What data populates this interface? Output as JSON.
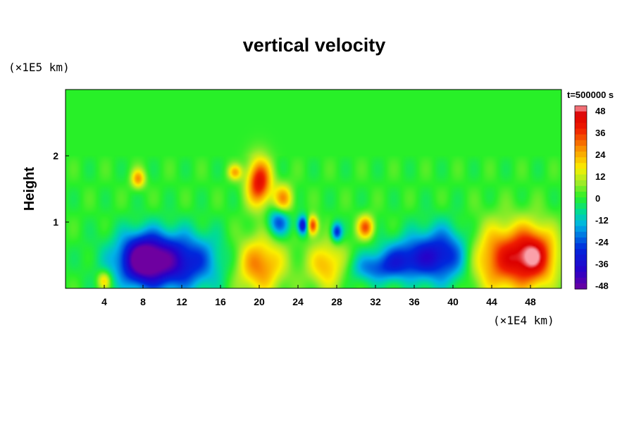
{
  "chart_data": {
    "type": "heatmap",
    "title": "vertical velocity",
    "xlabel": "",
    "x_unit": "(×1E4 km)",
    "ylabel": "Height",
    "y_unit": "(×1E5 km)",
    "time_label": "t=500000 s",
    "xlim": [
      0,
      51.2
    ],
    "ylim": [
      0,
      3
    ],
    "x_ticks": [
      "4",
      "8",
      "12",
      "16",
      "20",
      "24",
      "28",
      "32",
      "36",
      "40",
      "44",
      "48"
    ],
    "y_ticks": [
      "1",
      "2"
    ],
    "colorbar": {
      "range": [
        -48,
        48
      ],
      "labels": [
        "48",
        "36",
        "24",
        "12",
        "0",
        "-12",
        "-24",
        "-36",
        "-48"
      ]
    },
    "features": [
      {
        "x": 10.5,
        "y": 0.4,
        "value": -40,
        "sx": 3.5,
        "sy": 0.3
      },
      {
        "x": 8.0,
        "y": 0.45,
        "value": -30,
        "sx": 1.5,
        "sy": 0.25
      },
      {
        "x": 20.0,
        "y": 0.35,
        "value": 28,
        "sx": 1.8,
        "sy": 0.3
      },
      {
        "x": 27.0,
        "y": 0.35,
        "value": 22,
        "sx": 1.4,
        "sy": 0.25
      },
      {
        "x": 39.0,
        "y": 0.5,
        "value": -32,
        "sx": 2.2,
        "sy": 0.3
      },
      {
        "x": 35.0,
        "y": 0.45,
        "value": -22,
        "sx": 2.0,
        "sy": 0.2
      },
      {
        "x": 32.0,
        "y": 0.3,
        "value": -18,
        "sx": 2.0,
        "sy": 0.15
      },
      {
        "x": 45.5,
        "y": 0.45,
        "value": 36,
        "sx": 2.8,
        "sy": 0.35
      },
      {
        "x": 48.5,
        "y": 0.5,
        "value": 28,
        "sx": 1.5,
        "sy": 0.3
      },
      {
        "x": 20.0,
        "y": 1.6,
        "value": 40,
        "sx": 0.9,
        "sy": 0.25
      },
      {
        "x": 22.5,
        "y": 1.35,
        "value": 24,
        "sx": 0.7,
        "sy": 0.15
      },
      {
        "x": 25.5,
        "y": 0.95,
        "value": 36,
        "sx": 0.4,
        "sy": 0.1
      },
      {
        "x": 24.5,
        "y": 0.95,
        "value": -36,
        "sx": 0.4,
        "sy": 0.1
      },
      {
        "x": 22.0,
        "y": 1.0,
        "value": -24,
        "sx": 0.8,
        "sy": 0.15
      },
      {
        "x": 28.0,
        "y": 0.85,
        "value": -30,
        "sx": 0.4,
        "sy": 0.1
      },
      {
        "x": 31.0,
        "y": 0.92,
        "value": 30,
        "sx": 0.6,
        "sy": 0.12
      },
      {
        "x": 7.5,
        "y": 1.65,
        "value": 24,
        "sx": 0.5,
        "sy": 0.1
      },
      {
        "x": 17.5,
        "y": 1.75,
        "value": 20,
        "sx": 0.5,
        "sy": 0.08
      },
      {
        "x": 4.0,
        "y": 0.12,
        "value": 20,
        "sx": 0.5,
        "sy": 0.1
      }
    ]
  }
}
